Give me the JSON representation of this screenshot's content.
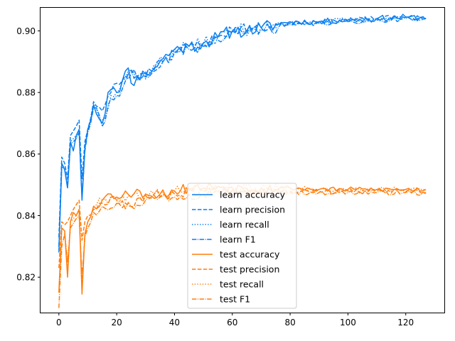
{
  "chart_data": {
    "type": "line",
    "title": "",
    "xlabel": "",
    "ylabel": "",
    "xlim": [
      -6.35,
      133.35
    ],
    "ylim": [
      0.8085,
      0.9075
    ],
    "xticks": [
      0,
      20,
      40,
      60,
      80,
      100,
      120
    ],
    "yticks": [
      0.82,
      0.84,
      0.86,
      0.88,
      0.9
    ],
    "grid": false,
    "legend_position": "lower-center",
    "colors": {
      "learn": "#1f77b4",
      "learn_display": "#0a7ff0",
      "test": "#ff7f0e"
    },
    "series": [
      {
        "name": "learn accuracy",
        "group": "learn",
        "dash": "solid",
        "anchors": [
          [
            0,
            0.828
          ],
          [
            1,
            0.857
          ],
          [
            2,
            0.855
          ],
          [
            3,
            0.849
          ],
          [
            4,
            0.864
          ],
          [
            5,
            0.861
          ],
          [
            6,
            0.866
          ],
          [
            7,
            0.868
          ],
          [
            8,
            0.845
          ],
          [
            9,
            0.862
          ],
          [
            10,
            0.868
          ],
          [
            12,
            0.876
          ],
          [
            15,
            0.87
          ],
          [
            17,
            0.88
          ],
          [
            20,
            0.88
          ],
          [
            22,
            0.884
          ],
          [
            24,
            0.888
          ],
          [
            25,
            0.883
          ],
          [
            27,
            0.885
          ],
          [
            30,
            0.886
          ],
          [
            33,
            0.888
          ],
          [
            36,
            0.891
          ],
          [
            40,
            0.894
          ],
          [
            45,
            0.895
          ],
          [
            50,
            0.896
          ],
          [
            55,
            0.898
          ],
          [
            60,
            0.9
          ],
          [
            65,
            0.9
          ],
          [
            70,
            0.901
          ],
          [
            75,
            0.902
          ],
          [
            80,
            0.903
          ],
          [
            90,
            0.903
          ],
          [
            100,
            0.9035
          ],
          [
            110,
            0.904
          ],
          [
            120,
            0.9045
          ],
          [
            127,
            0.904
          ]
        ],
        "noise": 0.0022,
        "seed": 11
      },
      {
        "name": "learn precision",
        "group": "learn",
        "dash": "dashed",
        "anchors": [
          [
            0,
            0.833
          ],
          [
            1,
            0.859
          ],
          [
            2,
            0.857
          ],
          [
            3,
            0.852
          ],
          [
            4,
            0.866
          ],
          [
            6,
            0.869
          ],
          [
            7,
            0.871
          ],
          [
            8,
            0.852
          ],
          [
            9,
            0.864
          ],
          [
            10,
            0.868
          ],
          [
            12,
            0.877
          ],
          [
            15,
            0.874
          ],
          [
            18,
            0.88
          ],
          [
            20,
            0.883
          ],
          [
            22,
            0.884
          ],
          [
            25,
            0.886
          ],
          [
            28,
            0.886
          ],
          [
            32,
            0.887
          ],
          [
            36,
            0.89
          ],
          [
            40,
            0.893
          ],
          [
            45,
            0.895
          ],
          [
            50,
            0.896
          ],
          [
            55,
            0.898
          ],
          [
            60,
            0.9005
          ],
          [
            70,
            0.901
          ],
          [
            80,
            0.9025
          ],
          [
            90,
            0.903
          ],
          [
            100,
            0.9035
          ],
          [
            110,
            0.904
          ],
          [
            120,
            0.9045
          ],
          [
            127,
            0.904
          ]
        ],
        "noise": 0.0018,
        "seed": 23
      },
      {
        "name": "learn recall",
        "group": "learn",
        "dash": "dotted",
        "anchors": [
          [
            0,
            0.829
          ],
          [
            1,
            0.856
          ],
          [
            2,
            0.855
          ],
          [
            3,
            0.85
          ],
          [
            4,
            0.864
          ],
          [
            6,
            0.866
          ],
          [
            7,
            0.868
          ],
          [
            8,
            0.846
          ],
          [
            9,
            0.862
          ],
          [
            10,
            0.868
          ],
          [
            12,
            0.876
          ],
          [
            15,
            0.871
          ],
          [
            18,
            0.879
          ],
          [
            20,
            0.88
          ],
          [
            24,
            0.887
          ],
          [
            28,
            0.885
          ],
          [
            32,
            0.887
          ],
          [
            36,
            0.891
          ],
          [
            40,
            0.894
          ],
          [
            45,
            0.895
          ],
          [
            50,
            0.896
          ],
          [
            55,
            0.898
          ],
          [
            60,
            0.9
          ],
          [
            70,
            0.901
          ],
          [
            80,
            0.9025
          ],
          [
            90,
            0.903
          ],
          [
            100,
            0.9035
          ],
          [
            110,
            0.904
          ],
          [
            120,
            0.9045
          ],
          [
            127,
            0.904
          ]
        ],
        "noise": 0.002,
        "seed": 37
      },
      {
        "name": "learn F1",
        "group": "learn",
        "dash": "dashdot",
        "anchors": [
          [
            0,
            0.83
          ],
          [
            1,
            0.856
          ],
          [
            2,
            0.855
          ],
          [
            3,
            0.849
          ],
          [
            4,
            0.863
          ],
          [
            6,
            0.865
          ],
          [
            7,
            0.867
          ],
          [
            8,
            0.846
          ],
          [
            9,
            0.861
          ],
          [
            10,
            0.867
          ],
          [
            12,
            0.875
          ],
          [
            15,
            0.869
          ],
          [
            18,
            0.878
          ],
          [
            20,
            0.879
          ],
          [
            24,
            0.886
          ],
          [
            28,
            0.884
          ],
          [
            32,
            0.886
          ],
          [
            36,
            0.89
          ],
          [
            40,
            0.893
          ],
          [
            45,
            0.894
          ],
          [
            50,
            0.895
          ],
          [
            55,
            0.897
          ],
          [
            60,
            0.8995
          ],
          [
            70,
            0.9005
          ],
          [
            80,
            0.902
          ],
          [
            90,
            0.9025
          ],
          [
            100,
            0.903
          ],
          [
            110,
            0.9035
          ],
          [
            120,
            0.904
          ],
          [
            127,
            0.9038
          ]
        ],
        "noise": 0.002,
        "seed": 41
      },
      {
        "name": "test accuracy",
        "group": "test",
        "dash": "solid",
        "anchors": [
          [
            0,
            0.815
          ],
          [
            1,
            0.836
          ],
          [
            2,
            0.835
          ],
          [
            3,
            0.82
          ],
          [
            4,
            0.838
          ],
          [
            5,
            0.841
          ],
          [
            6,
            0.84
          ],
          [
            7,
            0.842
          ],
          [
            8,
            0.8145
          ],
          [
            9,
            0.834
          ],
          [
            10,
            0.838
          ],
          [
            12,
            0.843
          ],
          [
            15,
            0.845
          ],
          [
            18,
            0.847
          ],
          [
            20,
            0.846
          ],
          [
            23,
            0.848
          ],
          [
            25,
            0.846
          ],
          [
            28,
            0.848
          ],
          [
            30,
            0.847
          ],
          [
            35,
            0.847
          ],
          [
            40,
            0.848
          ],
          [
            45,
            0.849
          ],
          [
            50,
            0.849
          ],
          [
            55,
            0.8495
          ],
          [
            60,
            0.849
          ],
          [
            70,
            0.849
          ],
          [
            80,
            0.849
          ],
          [
            90,
            0.8485
          ],
          [
            100,
            0.8485
          ],
          [
            110,
            0.8485
          ],
          [
            120,
            0.8485
          ],
          [
            127,
            0.8485
          ]
        ],
        "noise": 0.0018,
        "seed": 53
      },
      {
        "name": "test precision",
        "group": "test",
        "dash": "dashed",
        "anchors": [
          [
            0,
            0.823
          ],
          [
            1,
            0.838
          ],
          [
            2,
            0.837
          ],
          [
            3,
            0.838
          ],
          [
            5,
            0.842
          ],
          [
            7,
            0.845
          ],
          [
            8,
            0.832
          ],
          [
            9,
            0.838
          ],
          [
            10,
            0.84
          ],
          [
            12,
            0.842
          ],
          [
            15,
            0.844
          ],
          [
            18,
            0.846
          ],
          [
            20,
            0.845
          ],
          [
            25,
            0.843
          ],
          [
            28,
            0.846
          ],
          [
            32,
            0.846
          ],
          [
            36,
            0.847
          ],
          [
            40,
            0.847
          ],
          [
            45,
            0.848
          ],
          [
            50,
            0.848
          ],
          [
            55,
            0.8485
          ],
          [
            60,
            0.8485
          ],
          [
            70,
            0.848
          ],
          [
            80,
            0.848
          ],
          [
            90,
            0.848
          ],
          [
            100,
            0.848
          ],
          [
            110,
            0.848
          ],
          [
            120,
            0.8478
          ],
          [
            127,
            0.8475
          ]
        ],
        "noise": 0.0017,
        "seed": 67
      },
      {
        "name": "test recall",
        "group": "test",
        "dash": "dotted",
        "anchors": [
          [
            0,
            0.815
          ],
          [
            1,
            0.836
          ],
          [
            2,
            0.835
          ],
          [
            3,
            0.822
          ],
          [
            4,
            0.838
          ],
          [
            6,
            0.84
          ],
          [
            7,
            0.842
          ],
          [
            8,
            0.818
          ],
          [
            9,
            0.834
          ],
          [
            10,
            0.838
          ],
          [
            12,
            0.843
          ],
          [
            15,
            0.845
          ],
          [
            20,
            0.846
          ],
          [
            25,
            0.846
          ],
          [
            30,
            0.847
          ],
          [
            35,
            0.847
          ],
          [
            40,
            0.848
          ],
          [
            45,
            0.849
          ],
          [
            50,
            0.849
          ],
          [
            55,
            0.8495
          ],
          [
            60,
            0.849
          ],
          [
            70,
            0.849
          ],
          [
            80,
            0.849
          ],
          [
            90,
            0.8485
          ],
          [
            100,
            0.8485
          ],
          [
            110,
            0.8485
          ],
          [
            120,
            0.8485
          ],
          [
            127,
            0.8485
          ]
        ],
        "noise": 0.0016,
        "seed": 79
      },
      {
        "name": "test F1",
        "group": "test",
        "dash": "dashdot",
        "anchors": [
          [
            0,
            0.81
          ],
          [
            1,
            0.83
          ],
          [
            2,
            0.834
          ],
          [
            3,
            0.825
          ],
          [
            4,
            0.836
          ],
          [
            6,
            0.839
          ],
          [
            7,
            0.84
          ],
          [
            8,
            0.82
          ],
          [
            9,
            0.833
          ],
          [
            10,
            0.836
          ],
          [
            12,
            0.841
          ],
          [
            15,
            0.843
          ],
          [
            20,
            0.844
          ],
          [
            25,
            0.843
          ],
          [
            30,
            0.845
          ],
          [
            35,
            0.846
          ],
          [
            40,
            0.846
          ],
          [
            45,
            0.847
          ],
          [
            50,
            0.847
          ],
          [
            55,
            0.848
          ],
          [
            60,
            0.848
          ],
          [
            70,
            0.8475
          ],
          [
            80,
            0.8475
          ],
          [
            90,
            0.8475
          ],
          [
            100,
            0.8475
          ],
          [
            110,
            0.8475
          ],
          [
            120,
            0.8475
          ],
          [
            127,
            0.8472
          ]
        ],
        "noise": 0.0017,
        "seed": 97
      }
    ]
  }
}
